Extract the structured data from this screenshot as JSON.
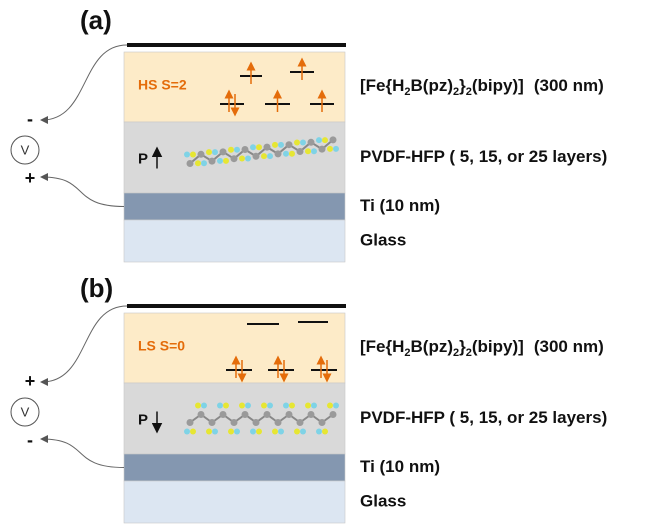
{
  "panels": [
    {
      "label": "(a)",
      "spin_state": "HS S=2",
      "polarization": "P",
      "voltmeter": {
        "symbol": "V",
        "top": "-",
        "bottom": "+"
      },
      "layers": {
        "sco": {
          "formula": [
            "[Fe{H",
            "2",
            "B(pz)",
            "2",
            "}",
            "2",
            "(bipy)]"
          ],
          "thickness": "(300 nm)"
        },
        "pvdf": "PVDF-HFP ( 5, 15, or 25 layers)",
        "ti": "Ti (10 nm)",
        "glass": "Glass"
      }
    },
    {
      "label": "(b)",
      "spin_state": "LS S=0",
      "polarization": "P",
      "voltmeter": {
        "symbol": "V",
        "top": "+",
        "bottom": "-"
      },
      "layers": {
        "sco": {
          "formula": [
            "[Fe{H",
            "2",
            "B(pz)",
            "2",
            "}",
            "2",
            "(bipy)]"
          ],
          "thickness": "(300 nm)"
        },
        "pvdf": "PVDF-HFP ( 5, 15, or 25 layers)",
        "ti": "Ti (10 nm)",
        "glass": "Glass"
      }
    }
  ]
}
